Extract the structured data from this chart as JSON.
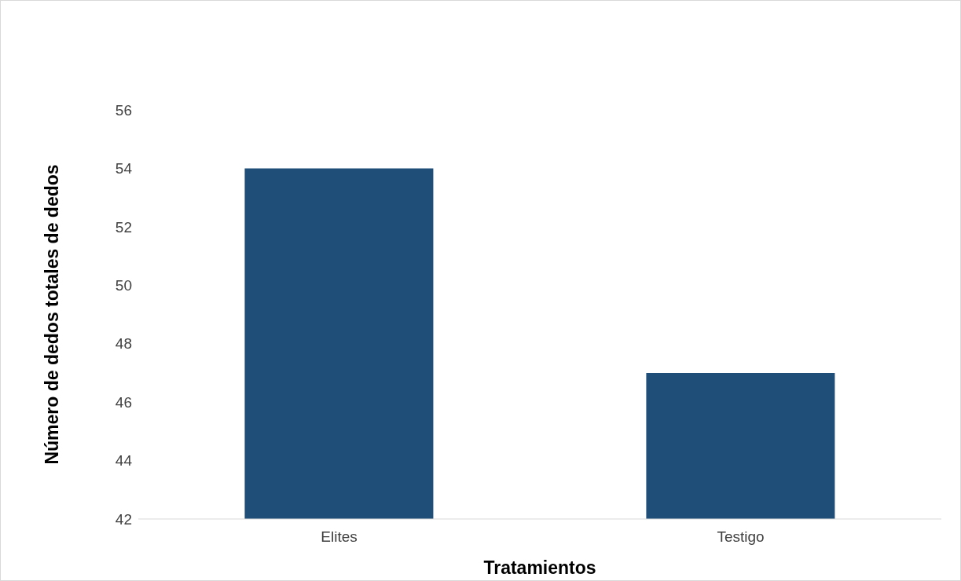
{
  "chart_data": {
    "type": "bar",
    "xlabel": "Tratamientos",
    "ylabel": "Número de dedos totales de dedos",
    "categories": [
      "Elites",
      "Testigo"
    ],
    "values": [
      54,
      47
    ],
    "color": "#1f4e79",
    "ylim": [
      42,
      56
    ],
    "yticks": [
      42,
      44,
      46,
      48,
      50,
      52,
      54,
      56
    ]
  }
}
